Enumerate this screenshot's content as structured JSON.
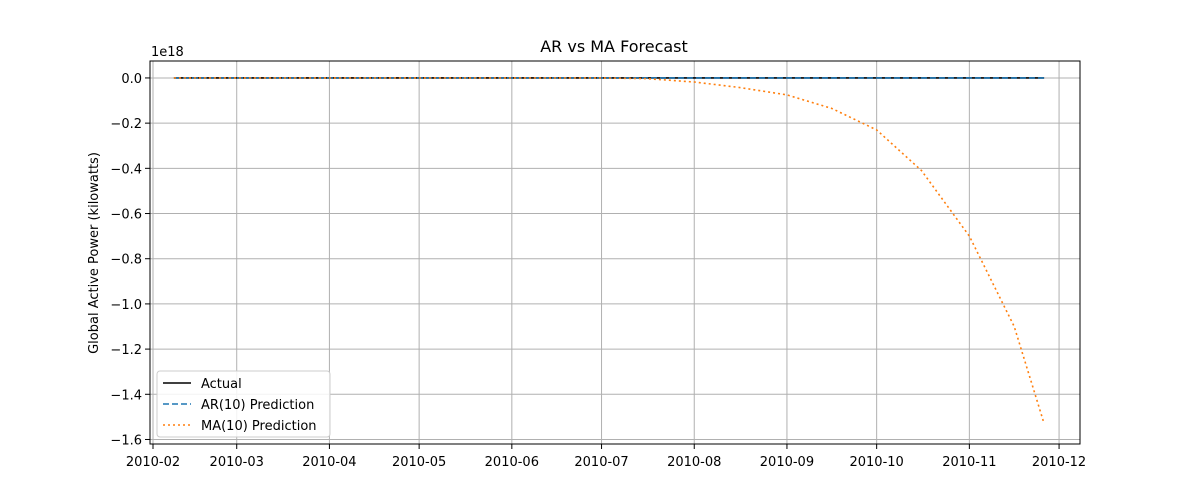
{
  "chart_data": {
    "type": "line",
    "title": "AR vs MA Forecast",
    "xlabel": "",
    "ylabel": "Global Active Power (kilowatts)",
    "y_offset_label": "1e18",
    "y_scale_factor": 1e+18,
    "ylim": [
      -1.62,
      0.075
    ],
    "xlim": [
      "2010-01-31",
      "2010-12-08"
    ],
    "x_ticks": [
      {
        "date": "2010-02-01",
        "label": "2010-02"
      },
      {
        "date": "2010-03-01",
        "label": "2010-03"
      },
      {
        "date": "2010-04-01",
        "label": "2010-04"
      },
      {
        "date": "2010-05-01",
        "label": "2010-05"
      },
      {
        "date": "2010-06-01",
        "label": "2010-06"
      },
      {
        "date": "2010-07-01",
        "label": "2010-07"
      },
      {
        "date": "2010-08-01",
        "label": "2010-08"
      },
      {
        "date": "2010-09-01",
        "label": "2010-09"
      },
      {
        "date": "2010-10-01",
        "label": "2010-10"
      },
      {
        "date": "2010-11-01",
        "label": "2010-11"
      },
      {
        "date": "2010-12-01",
        "label": "2010-12"
      }
    ],
    "y_ticks": [
      {
        "value": 0.0,
        "label": "0.0"
      },
      {
        "value": -0.2,
        "label": "−0.2"
      },
      {
        "value": -0.4,
        "label": "−0.4"
      },
      {
        "value": -0.6,
        "label": "−0.6"
      },
      {
        "value": -0.8,
        "label": "−0.8"
      },
      {
        "value": -1.0,
        "label": "−1.0"
      },
      {
        "value": -1.2,
        "label": "−1.2"
      },
      {
        "value": -1.4,
        "label": "−1.4"
      },
      {
        "value": -1.6,
        "label": "−1.6"
      }
    ],
    "grid": true,
    "legend_position": "lower-left",
    "series": [
      {
        "name": "Actual",
        "color": "#000000",
        "dash": "solid",
        "x": [
          "2010-02-08",
          "2010-11-26"
        ],
        "y": [
          0.0,
          0.0
        ]
      },
      {
        "name": "AR(10) Prediction",
        "color": "#1f77b4",
        "dash": "dashed",
        "x": [
          "2010-02-08",
          "2010-11-26"
        ],
        "y": [
          0.0,
          0.0
        ]
      },
      {
        "name": "MA(10) Prediction",
        "color": "#ff7f0e",
        "dash": "dotted",
        "x": [
          "2010-02-08",
          "2010-07-01",
          "2010-07-16",
          "2010-08-01",
          "2010-08-16",
          "2010-09-01",
          "2010-09-16",
          "2010-10-01",
          "2010-10-16",
          "2010-11-01",
          "2010-11-16",
          "2010-11-26"
        ],
        "y": [
          0.0,
          0.0,
          -0.003,
          -0.018,
          -0.042,
          -0.075,
          -0.135,
          -0.23,
          -0.41,
          -0.7,
          -1.1,
          -1.53
        ]
      }
    ]
  }
}
